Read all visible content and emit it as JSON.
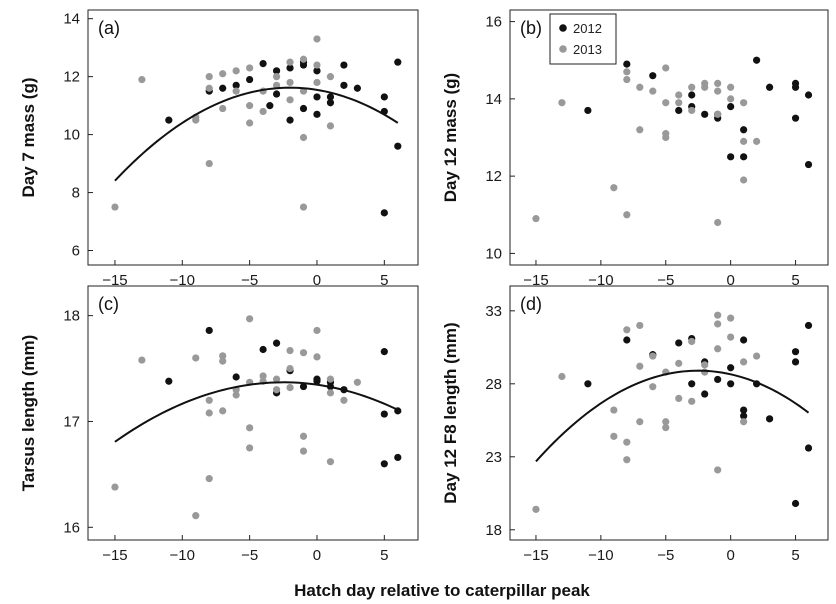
{
  "figure": {
    "xlabel": "Hatch day relative to caterpillar peak"
  },
  "legend": {
    "items": [
      {
        "label": "2012",
        "color": "#111111"
      },
      {
        "label": "2013",
        "color": "#999999"
      }
    ]
  },
  "chart_data": [
    {
      "type": "scatter",
      "panel": "(a)",
      "ylabel": "Day 7 mass (g)",
      "xlim": [
        -17,
        7.5
      ],
      "ylim": [
        5.5,
        14.3
      ],
      "xticks": [
        -15,
        -10,
        -5,
        0,
        5
      ],
      "yticks": [
        6,
        8,
        10,
        12,
        14
      ],
      "fit_curve": {
        "a": -0.019,
        "vertex_x": -2,
        "vertex_y": 11.62,
        "x_range": [
          -15,
          6
        ]
      },
      "series": [
        {
          "name": "2012",
          "color": "#111111",
          "points": [
            [
              -11,
              10.5
            ],
            [
              -8,
              11.5
            ],
            [
              -7,
              11.6
            ],
            [
              -6,
              11.7
            ],
            [
              -5,
              11.9
            ],
            [
              -4,
              12.45
            ],
            [
              -3.5,
              11.0
            ],
            [
              -3,
              11.4
            ],
            [
              -3,
              12.2
            ],
            [
              -2,
              12.3
            ],
            [
              -2,
              10.5
            ],
            [
              -1,
              12.5
            ],
            [
              -1,
              12.4
            ],
            [
              -1,
              10.9
            ],
            [
              0,
              12.2
            ],
            [
              0,
              11.3
            ],
            [
              0,
              10.7
            ],
            [
              1,
              11.3
            ],
            [
              1,
              11.1
            ],
            [
              2,
              12.4
            ],
            [
              2,
              11.7
            ],
            [
              3,
              11.6
            ],
            [
              5,
              11.3
            ],
            [
              5,
              10.8
            ],
            [
              5,
              7.3
            ],
            [
              6,
              12.5
            ],
            [
              6,
              9.6
            ]
          ]
        },
        {
          "name": "2013",
          "color": "#999999",
          "points": [
            [
              -15,
              7.5
            ],
            [
              -13,
              11.9
            ],
            [
              -9,
              10.6
            ],
            [
              -9,
              10.5
            ],
            [
              -8,
              12.0
            ],
            [
              -8,
              11.6
            ],
            [
              -8,
              9.0
            ],
            [
              -7,
              12.1
            ],
            [
              -7,
              10.9
            ],
            [
              -6,
              12.2
            ],
            [
              -6,
              11.5
            ],
            [
              -5,
              12.3
            ],
            [
              -5,
              11.0
            ],
            [
              -5,
              10.4
            ],
            [
              -4,
              11.5
            ],
            [
              -4,
              10.8
            ],
            [
              -3,
              12.0
            ],
            [
              -3,
              11.7
            ],
            [
              -2,
              12.5
            ],
            [
              -2,
              11.8
            ],
            [
              -2,
              11.2
            ],
            [
              -1,
              12.6
            ],
            [
              -1,
              11.5
            ],
            [
              -1,
              9.9
            ],
            [
              -1,
              7.5
            ],
            [
              0,
              13.3
            ],
            [
              0,
              12.4
            ],
            [
              0,
              11.8
            ],
            [
              1,
              12.0
            ],
            [
              1,
              10.3
            ]
          ]
        }
      ]
    },
    {
      "type": "scatter",
      "panel": "(b)",
      "ylabel": "Day 12 mass (g)",
      "xlim": [
        -17,
        7.5
      ],
      "ylim": [
        9.7,
        16.3
      ],
      "xticks": [
        -15,
        -10,
        -5,
        0,
        5
      ],
      "yticks": [
        10,
        12,
        14,
        16
      ],
      "series": [
        {
          "name": "2012",
          "color": "#111111",
          "points": [
            [
              -11,
              13.7
            ],
            [
              -8,
              14.9
            ],
            [
              -6,
              14.6
            ],
            [
              -4,
              13.7
            ],
            [
              -3,
              14.1
            ],
            [
              -3,
              13.8
            ],
            [
              -2,
              13.6
            ],
            [
              -1,
              13.6
            ],
            [
              -1,
              13.5
            ],
            [
              0,
              13.8
            ],
            [
              0,
              12.5
            ],
            [
              1,
              13.2
            ],
            [
              1,
              12.5
            ],
            [
              2,
              15.0
            ],
            [
              3,
              14.3
            ],
            [
              5,
              14.4
            ],
            [
              5,
              14.3
            ],
            [
              5,
              13.5
            ],
            [
              6,
              14.1
            ],
            [
              6,
              12.3
            ]
          ]
        },
        {
          "name": "2013",
          "color": "#999999",
          "points": [
            [
              -15,
              10.9
            ],
            [
              -13,
              13.9
            ],
            [
              -9,
              11.7
            ],
            [
              -8,
              14.7
            ],
            [
              -8,
              14.5
            ],
            [
              -8,
              11.0
            ],
            [
              -7,
              14.3
            ],
            [
              -7,
              13.2
            ],
            [
              -6,
              14.2
            ],
            [
              -5,
              14.8
            ],
            [
              -5,
              13.9
            ],
            [
              -5,
              13.1
            ],
            [
              -5,
              13.0
            ],
            [
              -4,
              14.1
            ],
            [
              -4,
              13.9
            ],
            [
              -3,
              14.3
            ],
            [
              -3,
              13.7
            ],
            [
              -2,
              14.4
            ],
            [
              -2,
              14.3
            ],
            [
              -1,
              14.4
            ],
            [
              -1,
              14.2
            ],
            [
              -1,
              13.6
            ],
            [
              -1,
              10.8
            ],
            [
              0,
              14.3
            ],
            [
              0,
              14.0
            ],
            [
              1,
              13.9
            ],
            [
              1,
              12.9
            ],
            [
              1,
              11.9
            ],
            [
              2,
              12.9
            ]
          ]
        }
      ]
    },
    {
      "type": "scatter",
      "panel": "(c)",
      "ylabel": "Tarsus length (mm)",
      "xlim": [
        -17,
        7.5
      ],
      "ylim": [
        15.88,
        18.28
      ],
      "xticks": [
        -15,
        -10,
        -5,
        0,
        5
      ],
      "yticks": [
        16,
        17,
        18
      ],
      "fit_curve": {
        "a": -0.0036,
        "vertex_x": -2.5,
        "vertex_y": 17.37,
        "x_range": [
          -15,
          6
        ]
      },
      "series": [
        {
          "name": "2012",
          "color": "#111111",
          "points": [
            [
              -11,
              17.38
            ],
            [
              -8,
              17.86
            ],
            [
              -6,
              17.42
            ],
            [
              -4,
              17.68
            ],
            [
              -3,
              17.74
            ],
            [
              -3,
              17.27
            ],
            [
              -2,
              17.48
            ],
            [
              -1,
              17.33
            ],
            [
              0,
              17.38
            ],
            [
              0,
              17.4
            ],
            [
              1,
              17.37
            ],
            [
              1,
              17.33
            ],
            [
              2,
              17.3
            ],
            [
              5,
              17.66
            ],
            [
              5,
              17.07
            ],
            [
              5,
              16.6
            ],
            [
              6,
              17.1
            ],
            [
              6,
              16.66
            ]
          ]
        },
        {
          "name": "2013",
          "color": "#999999",
          "points": [
            [
              -15,
              16.38
            ],
            [
              -13,
              17.58
            ],
            [
              -9,
              17.6
            ],
            [
              -9,
              16.11
            ],
            [
              -8,
              17.2
            ],
            [
              -8,
              17.08
            ],
            [
              -8,
              16.46
            ],
            [
              -7,
              17.62
            ],
            [
              -7,
              17.57
            ],
            [
              -7,
              17.1
            ],
            [
              -6,
              17.3
            ],
            [
              -6,
              17.25
            ],
            [
              -5,
              17.97
            ],
            [
              -5,
              17.37
            ],
            [
              -5,
              16.94
            ],
            [
              -5,
              16.75
            ],
            [
              -4,
              17.43
            ],
            [
              -4,
              17.38
            ],
            [
              -3,
              17.4
            ],
            [
              -3,
              17.3
            ],
            [
              -2,
              17.67
            ],
            [
              -2,
              17.5
            ],
            [
              -2,
              17.32
            ],
            [
              -1,
              17.65
            ],
            [
              -1,
              16.86
            ],
            [
              -1,
              16.72
            ],
            [
              0,
              17.86
            ],
            [
              0,
              17.61
            ],
            [
              1,
              17.4
            ],
            [
              1,
              17.27
            ],
            [
              1,
              16.62
            ],
            [
              2,
              17.2
            ],
            [
              3,
              17.37
            ]
          ]
        }
      ]
    },
    {
      "type": "scatter",
      "panel": "(d)",
      "ylabel": "Day 12 F8 length (mm)",
      "xlim": [
        -17,
        7.5
      ],
      "ylim": [
        17.3,
        34.7
      ],
      "xticks": [
        -15,
        -10,
        -5,
        0,
        5
      ],
      "yticks": [
        18,
        23,
        28,
        33
      ],
      "fit_curve": {
        "a": -0.0398,
        "vertex_x": -2.5,
        "vertex_y": 28.9,
        "x_range": [
          -15,
          6
        ]
      },
      "series": [
        {
          "name": "2012",
          "color": "#111111",
          "points": [
            [
              -11,
              28.0
            ],
            [
              -8,
              31.0
            ],
            [
              -6,
              30.0
            ],
            [
              -4,
              30.8
            ],
            [
              -3,
              31.1
            ],
            [
              -3,
              28.0
            ],
            [
              -2,
              29.5
            ],
            [
              -2,
              27.3
            ],
            [
              -1,
              28.3
            ],
            [
              0,
              29.1
            ],
            [
              0,
              28.0
            ],
            [
              1,
              31.0
            ],
            [
              1,
              26.2
            ],
            [
              1,
              25.8
            ],
            [
              2,
              28.0
            ],
            [
              3,
              25.6
            ],
            [
              5,
              30.2
            ],
            [
              5,
              29.5
            ],
            [
              5,
              19.8
            ],
            [
              6,
              32.0
            ],
            [
              6,
              23.6
            ]
          ]
        },
        {
          "name": "2013",
          "color": "#999999",
          "points": [
            [
              -15,
              19.4
            ],
            [
              -13,
              28.5
            ],
            [
              -9,
              26.2
            ],
            [
              -9,
              24.4
            ],
            [
              -8,
              31.7
            ],
            [
              -8,
              24.0
            ],
            [
              -8,
              22.8
            ],
            [
              -7,
              32.0
            ],
            [
              -7,
              29.2
            ],
            [
              -7,
              25.4
            ],
            [
              -6,
              29.9
            ],
            [
              -6,
              27.8
            ],
            [
              -5,
              25.4
            ],
            [
              -5,
              25.0
            ],
            [
              -5,
              28.8
            ],
            [
              -4,
              29.4
            ],
            [
              -4,
              27.0
            ],
            [
              -3,
              30.9
            ],
            [
              -3,
              26.8
            ],
            [
              -2,
              29.3
            ],
            [
              -2,
              28.8
            ],
            [
              -1,
              32.7
            ],
            [
              -1,
              32.1
            ],
            [
              -1,
              30.4
            ],
            [
              -1,
              22.1
            ],
            [
              0,
              32.5
            ],
            [
              0,
              31.2
            ],
            [
              1,
              29.5
            ],
            [
              1,
              25.4
            ],
            [
              2,
              29.9
            ]
          ]
        }
      ]
    }
  ]
}
